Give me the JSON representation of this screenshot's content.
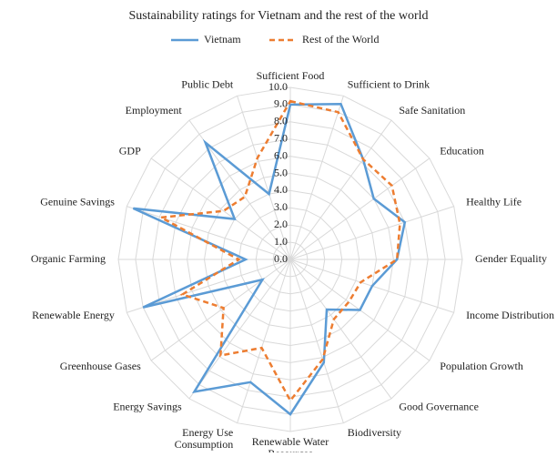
{
  "chart_data": {
    "type": "radar",
    "title": "Sustainability ratings for Vietnam and the rest of the world",
    "categories": [
      "Sufficient Food",
      "Sufficient to Drink",
      "Safe Sanitation",
      "Education",
      "Healthy Life",
      "Gender Equality",
      "Income Distribution",
      "Population Growth",
      "Good Governance",
      "Biodiversity",
      "Renewable Water Resources",
      "Energy Use Consumption",
      "Energy Savings",
      "Greenhouse Gases",
      "Renewable Energy",
      "Organic Farming",
      "Genuine Savings",
      "GDP",
      "Employment",
      "Public Debt"
    ],
    "series": [
      {
        "name": "Vietnam",
        "color": "#5b9bd5",
        "dashed": false,
        "values": [
          9.0,
          9.5,
          7.2,
          6.0,
          7.0,
          6.2,
          5.0,
          5.0,
          3.6,
          6.3,
          9.0,
          7.5,
          9.5,
          2.0,
          9.0,
          2.6,
          9.6,
          4.0,
          8.4,
          4.0
        ]
      },
      {
        "name": "Rest of the World",
        "color": "#ed7d31",
        "dashed": true,
        "values": [
          9.2,
          9.0,
          7.2,
          7.3,
          6.7,
          6.2,
          4.3,
          4.2,
          4.3,
          6.1,
          8.2,
          5.4,
          6.9,
          4.8,
          6.6,
          3.0,
          7.9,
          4.8,
          4.5,
          6.2
        ]
      }
    ],
    "ylim": [
      0,
      10
    ],
    "yticks": [
      {
        "value": 0,
        "label": "0.0"
      },
      {
        "value": 1,
        "label": "1.0"
      },
      {
        "value": 2,
        "label": "2.0"
      },
      {
        "value": 3,
        "label": "3.0"
      },
      {
        "value": 4,
        "label": "4.0"
      },
      {
        "value": 5,
        "label": "5.0"
      },
      {
        "value": 6,
        "label": "6.0"
      },
      {
        "value": 7,
        "label": "7.0"
      },
      {
        "value": 8,
        "label": "8.0"
      },
      {
        "value": 9,
        "label": "9.0"
      },
      {
        "value": 10,
        "label": "10.0"
      }
    ],
    "grid": true,
    "legend": "top"
  }
}
